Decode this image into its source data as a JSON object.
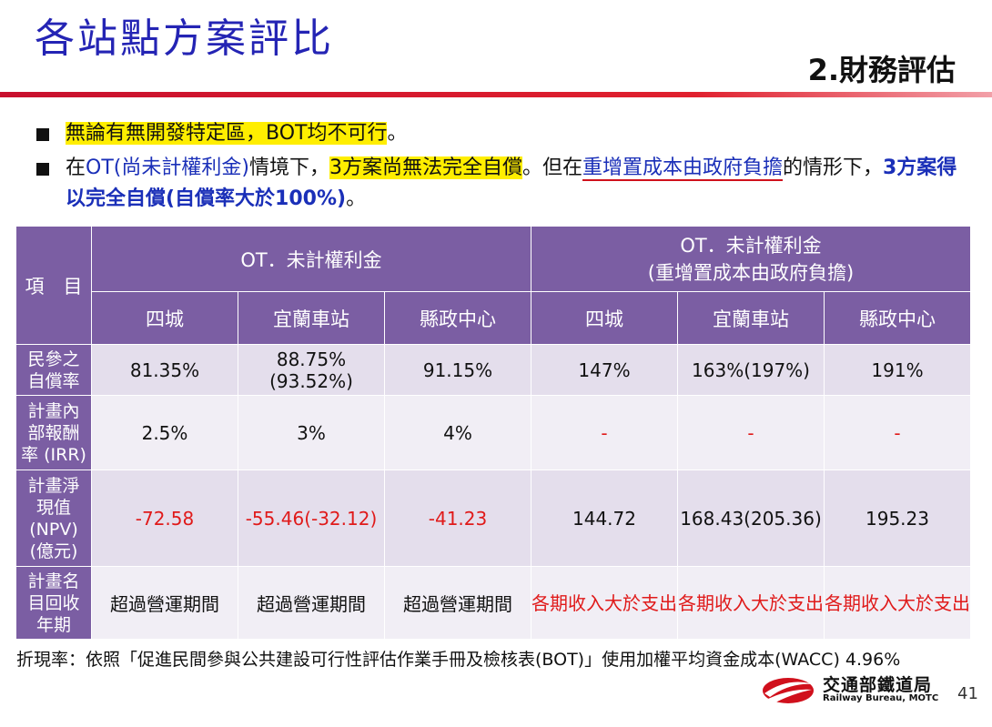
{
  "header": {
    "title": "各站點方案評比",
    "section": "2.財務評估"
  },
  "bullets": {
    "b1": {
      "part1": "無論有無開發特定區，BOT均不可行",
      "part2": "。"
    },
    "b2": {
      "part1": "在",
      "part2": "OT(尚未計權利金)",
      "part3": "情境下，",
      "part4": "3方案尚無法完全自償",
      "part5": "。但在",
      "part6": "重增置成本由政府負擔",
      "part7": "的情形下，",
      "part8": "3方案得以完全自償(自償率大於100%)",
      "part9": "。"
    }
  },
  "table": {
    "corner": "項　目",
    "group1": "OT．未計權利金",
    "group2_line1": "OT．未計權利金",
    "group2_line2": "(重增置成本由政府負擔)",
    "cols": [
      "四城",
      "宜蘭車站",
      "縣政中心",
      "四城",
      "宜蘭車站",
      "縣政中心"
    ],
    "rows": [
      {
        "label": "民參之自償率",
        "values": [
          "81.35%",
          "88.75%(93.52%)",
          "91.15%",
          "147%",
          "163%(197%)",
          "191%"
        ]
      },
      {
        "label": "計畫內部報酬率 (IRR)",
        "values": [
          "2.5%",
          "3%",
          "4%",
          "-",
          "-",
          "-"
        ]
      },
      {
        "label": "計畫淨現值(NPV)(億元)",
        "values": [
          "-72.58",
          "-55.46(-32.12)",
          "-41.23",
          "144.72",
          "168.43(205.36)",
          "195.23"
        ]
      },
      {
        "label": "計畫名目回收年期",
        "values": [
          "超過營運期間",
          "超過營運期間",
          "超過營運期間",
          "各期收入大於支出",
          "各期收入大於支出",
          "各期收入大於支出"
        ]
      }
    ],
    "row_label_lines": [
      [
        "民參之",
        "自償率"
      ],
      [
        "計畫內",
        "部報酬",
        "率 (IRR)"
      ],
      [
        "計畫淨",
        "現值",
        "(NPV)",
        "(億元)"
      ],
      [
        "計畫名",
        "目回收",
        "年期"
      ]
    ]
  },
  "note": "折現率：依照「促進民間參與公共建設可行性評估作業手冊及檢核表(BOT)」使用加權平均資金成本(WACC) 4.96%",
  "logo": {
    "cn": "交通部鐵道局",
    "en": "Railway Bureau, MOTC"
  },
  "page_number": "41",
  "colors": {
    "title": "#2424b4",
    "header_bg": "#7b5ea3",
    "negative": "#e01a1a",
    "highlight": "#ffee00"
  }
}
